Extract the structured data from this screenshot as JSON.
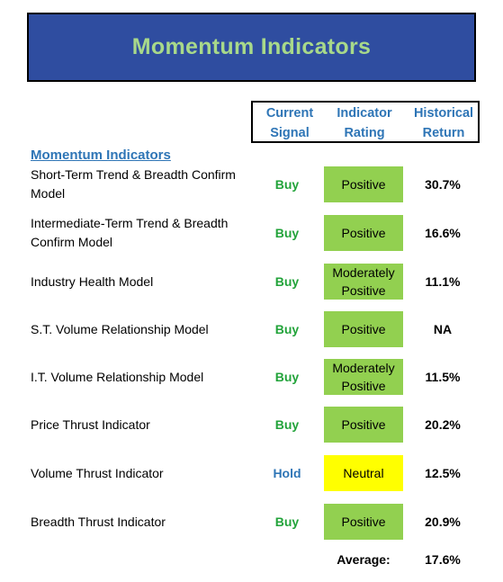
{
  "banner": {
    "title": "Momentum Indicators"
  },
  "columns": {
    "signal": "Current Signal",
    "rating": "Indicator Rating",
    "return": "Historical Return"
  },
  "section_title": "Momentum Indicators",
  "colors": {
    "banner_bg": "#2f4da0",
    "banner_text": "#a8d98a",
    "header_text": "#2e75b6",
    "buy": "#22a33a",
    "hold": "#2e75b6",
    "positive_fill": "#92d050",
    "neutral_fill": "#ffff00"
  },
  "rows": [
    {
      "label": "Short-Term Trend & Breadth Confirm Model",
      "signal": "Buy",
      "rating": "Positive",
      "return": "30.7%"
    },
    {
      "label": "Intermediate-Term Trend & Breadth Confirm Model",
      "signal": "Buy",
      "rating": "Positive",
      "return": "16.6%"
    },
    {
      "label": "Industry Health Model",
      "signal": "Buy",
      "rating": "Moderately Positive",
      "return": "11.1%"
    },
    {
      "label": "S.T. Volume Relationship Model",
      "signal": "Buy",
      "rating": "Positive",
      "return": "NA"
    },
    {
      "label": "I.T. Volume Relationship Model",
      "signal": "Buy",
      "rating": "Moderately Positive",
      "return": "11.5%"
    },
    {
      "label": "Price Thrust Indicator",
      "signal": "Buy",
      "rating": "Positive",
      "return": "20.2%"
    },
    {
      "label": "Volume Thrust Indicator",
      "signal": "Hold",
      "rating": "Neutral",
      "return": "12.5%"
    },
    {
      "label": "Breadth Thrust Indicator",
      "signal": "Buy",
      "rating": "Positive",
      "return": "20.9%"
    }
  ],
  "average": {
    "label": "Average:",
    "value": "17.6%"
  }
}
